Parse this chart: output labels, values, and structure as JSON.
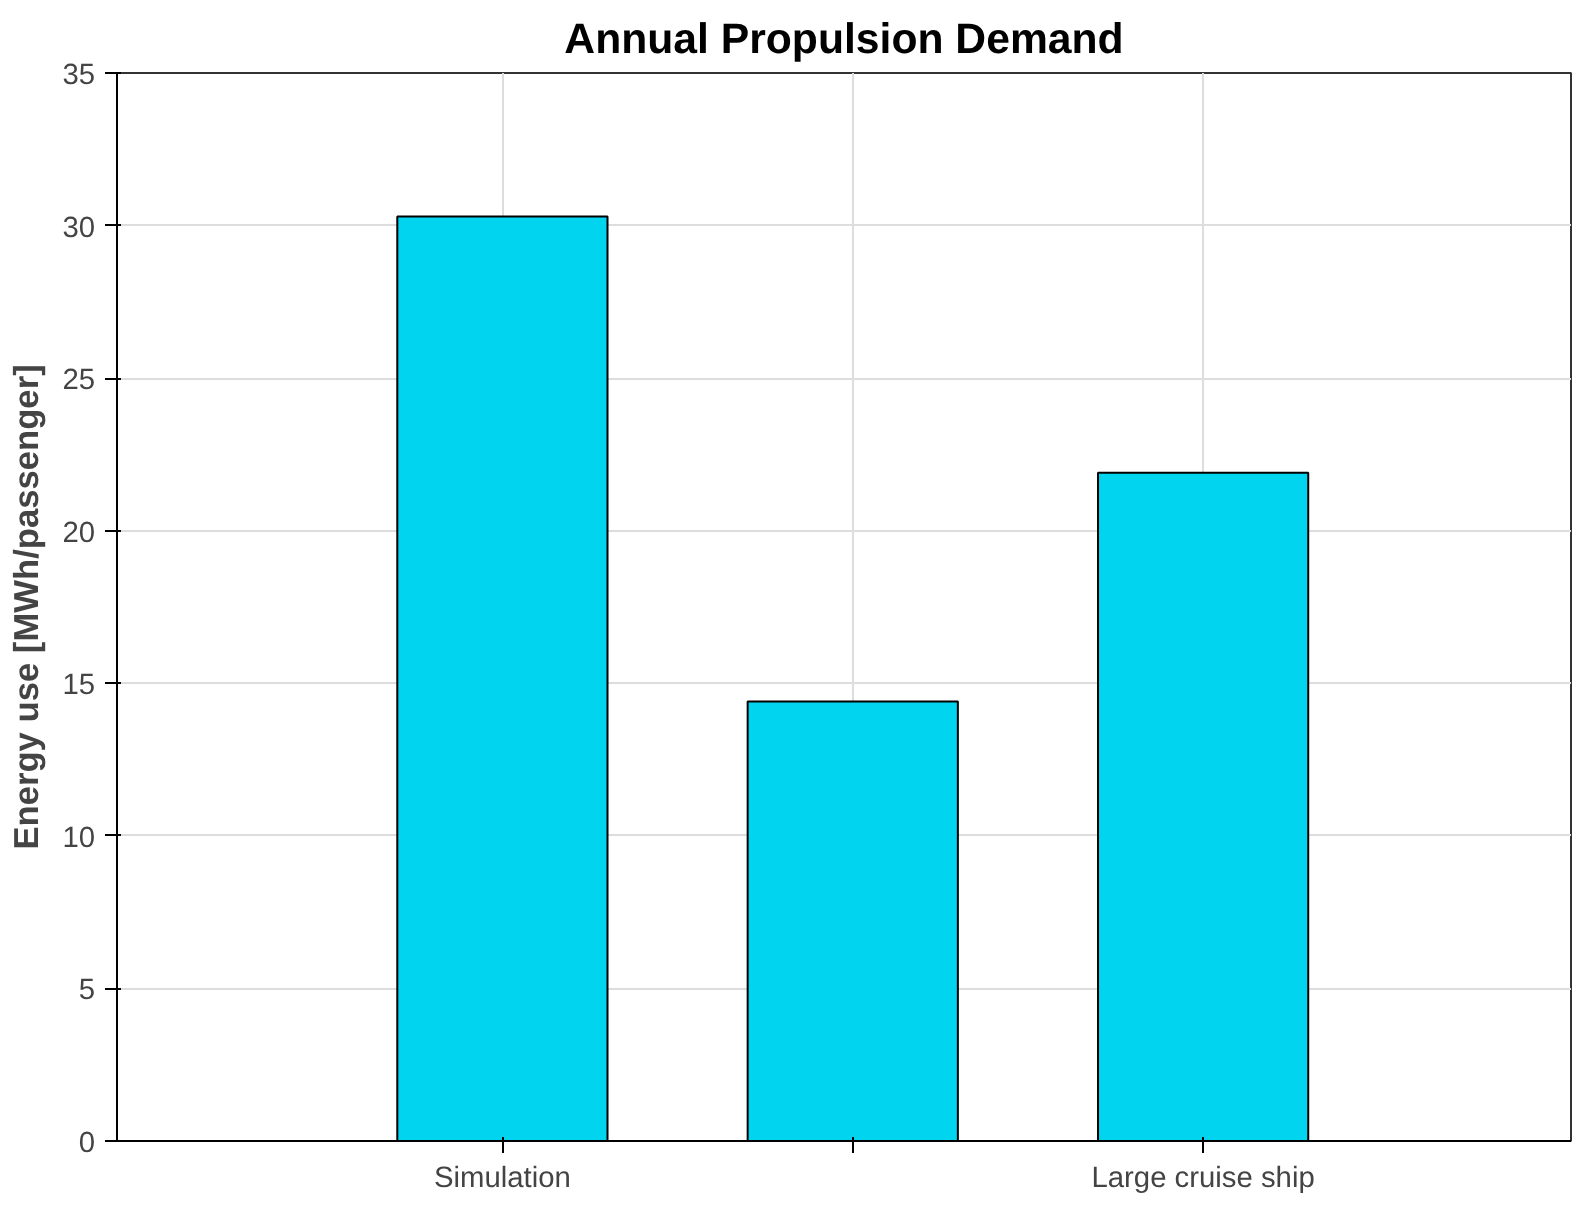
{
  "chart_data": {
    "type": "bar",
    "title": "Annual Propulsion Demand",
    "ylabel": "Energy use [MWh/passenger]",
    "categories": [
      "Simulation",
      null,
      "Large cruise ship"
    ],
    "values": [
      30.3,
      14.4,
      21.9
    ],
    "color": "#00d4ee",
    "ylim": [
      0,
      35
    ],
    "yticks": [
      0,
      5,
      10,
      15,
      20,
      25,
      30,
      35
    ],
    "grid": true
  }
}
